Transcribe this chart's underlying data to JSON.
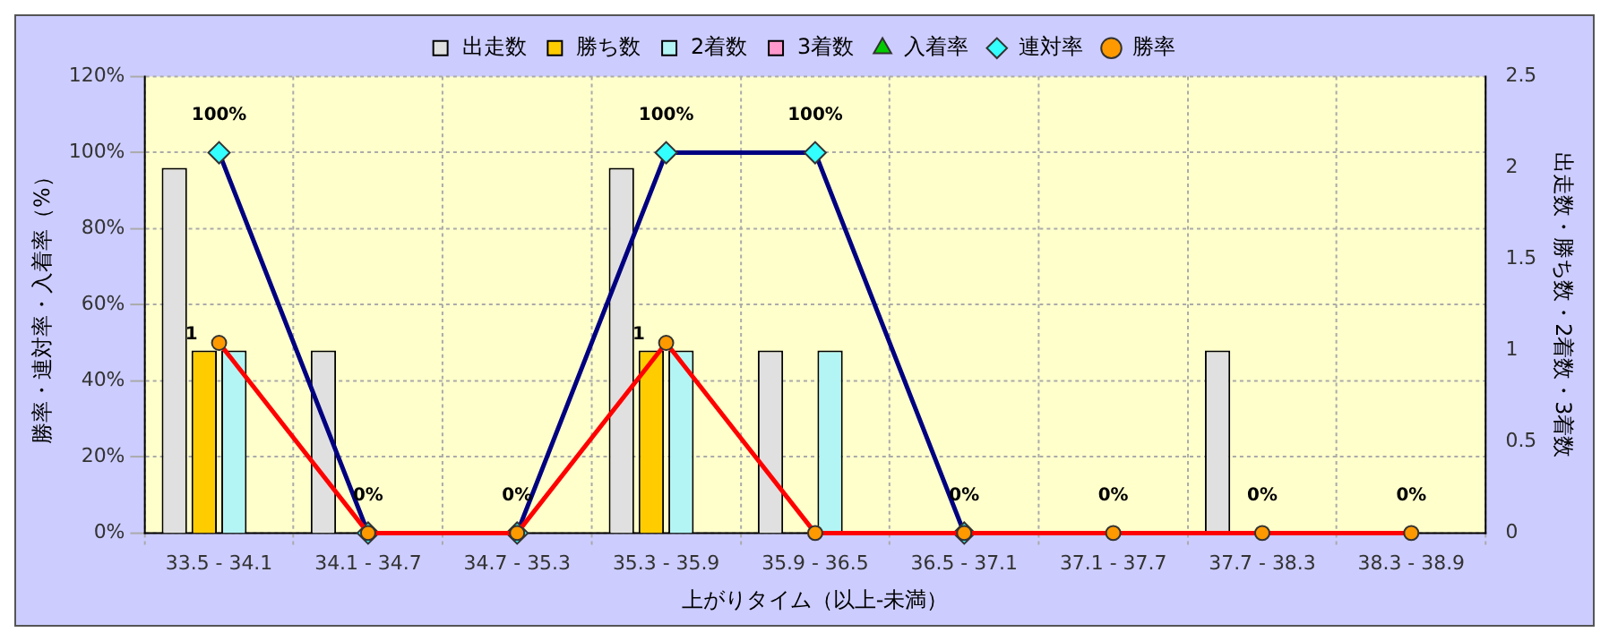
{
  "chart_data": {
    "type": "bar",
    "xlabel": "上がりタイム（以上-未満）",
    "ylabel": "勝率・連対率・入着率（%）",
    "y2label": "出走数・勝ち数・2着数・3着数",
    "categories": [
      "33.5 - 34.1",
      "34.1 - 34.7",
      "34.7 - 35.3",
      "35.3 - 35.9",
      "35.9 - 36.5",
      "36.5 - 37.1",
      "37.1 - 37.7",
      "37.7 - 38.3",
      "38.3 - 38.9"
    ],
    "series": [
      {
        "name": "出走数",
        "axis": "y2",
        "color": "#e0e0e0",
        "values": [
          2,
          1,
          0,
          2,
          1,
          0,
          0,
          1,
          0
        ]
      },
      {
        "name": "勝ち数",
        "axis": "y2",
        "color": "#ffcc00",
        "values": [
          1,
          0,
          0,
          1,
          0,
          0,
          0,
          0,
          0
        ],
        "value_labels": [
          "1",
          null,
          null,
          "1",
          null,
          null,
          null,
          null,
          null
        ]
      },
      {
        "name": "2着数",
        "axis": "y2",
        "color": "#b3f5f5",
        "values": [
          1,
          0,
          0,
          1,
          1,
          0,
          0,
          0,
          0
        ]
      },
      {
        "name": "3着数",
        "axis": "y2",
        "color": "#ff99cc",
        "values": [
          0,
          0,
          0,
          0,
          0,
          0,
          0,
          0,
          0
        ]
      },
      {
        "name": "入着率",
        "type": "line",
        "color": "#00cc00",
        "marker": "triangle",
        "values": [
          null,
          null,
          null,
          null,
          null,
          null,
          null,
          null,
          null
        ]
      },
      {
        "name": "連対率",
        "type": "line",
        "color": "#000080",
        "marker": "diamond",
        "values": [
          100,
          0,
          0,
          100,
          100,
          0,
          null,
          null,
          null
        ],
        "value_labels": [
          "100%",
          "0%",
          "0%",
          "100%",
          "100%",
          "0%",
          null,
          null,
          null
        ]
      },
      {
        "name": "勝率",
        "type": "line",
        "color": "#ff0000",
        "marker": "circle",
        "values": [
          50,
          0,
          0,
          50,
          0,
          0,
          0,
          0,
          0
        ],
        "value_labels": [
          null,
          null,
          null,
          null,
          null,
          null,
          "0%",
          "0%",
          "0%"
        ]
      }
    ],
    "ylim": [
      0,
      120
    ],
    "yticks": [
      {
        "value": 0,
        "label": "0%"
      },
      {
        "value": 20,
        "label": "20%"
      },
      {
        "value": 40,
        "label": "40%"
      },
      {
        "value": 60,
        "label": "60%"
      },
      {
        "value": 80,
        "label": "80%"
      },
      {
        "value": 100,
        "label": "100%"
      },
      {
        "value": 120,
        "label": "120%"
      }
    ],
    "y2lim": [
      0,
      2.5
    ],
    "y2ticks": [
      0,
      0.5,
      1,
      1.5,
      2,
      2.5
    ],
    "grid": true,
    "legend": "top"
  }
}
